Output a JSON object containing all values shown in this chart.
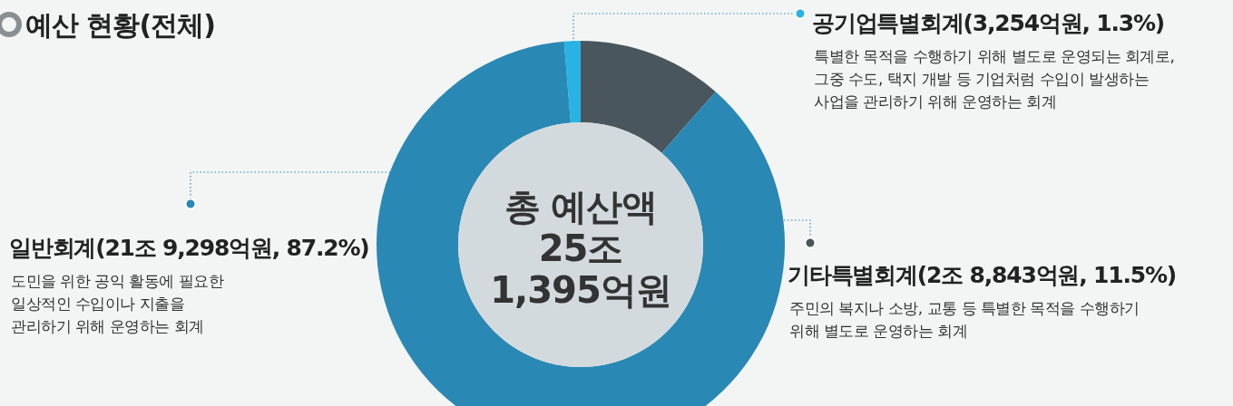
{
  "chart_data": {
    "type": "donut",
    "title": "예산 현황(전체)",
    "categories": [
      "공기업특별회계",
      "기타특별회계",
      "일반회계"
    ],
    "values": [
      1.3,
      11.5,
      87.2
    ],
    "value_labels": [
      "(3,254억원, 1.3%)",
      "(2조 8,843억원, 11.5%)",
      "(21조 9,298억원, 87.2%)"
    ],
    "colors": [
      "#29b3e4",
      "#4a565d",
      "#2a88b4"
    ],
    "legend": "right",
    "annotations": [
      "총 예산액\n25조\n1,395억원",
      "특별한 목적을 수행하기 위해 별도로 운영되는 회계로,\n그중 수도, 택지 개발 등 기업처럼 수입이 발생하는\n사업을 관리하기 위해 운영하는 회계",
      "주민의 복지나 소방, 교통 등 특별한 목적을 수행하기\n위해 별도로 운영하는 회계",
      "도민을 위한 공익 활동에 필요한\n일상적인 수입이나 지출을\n관리하기 위해 운영하는 회계"
    ]
  }
}
